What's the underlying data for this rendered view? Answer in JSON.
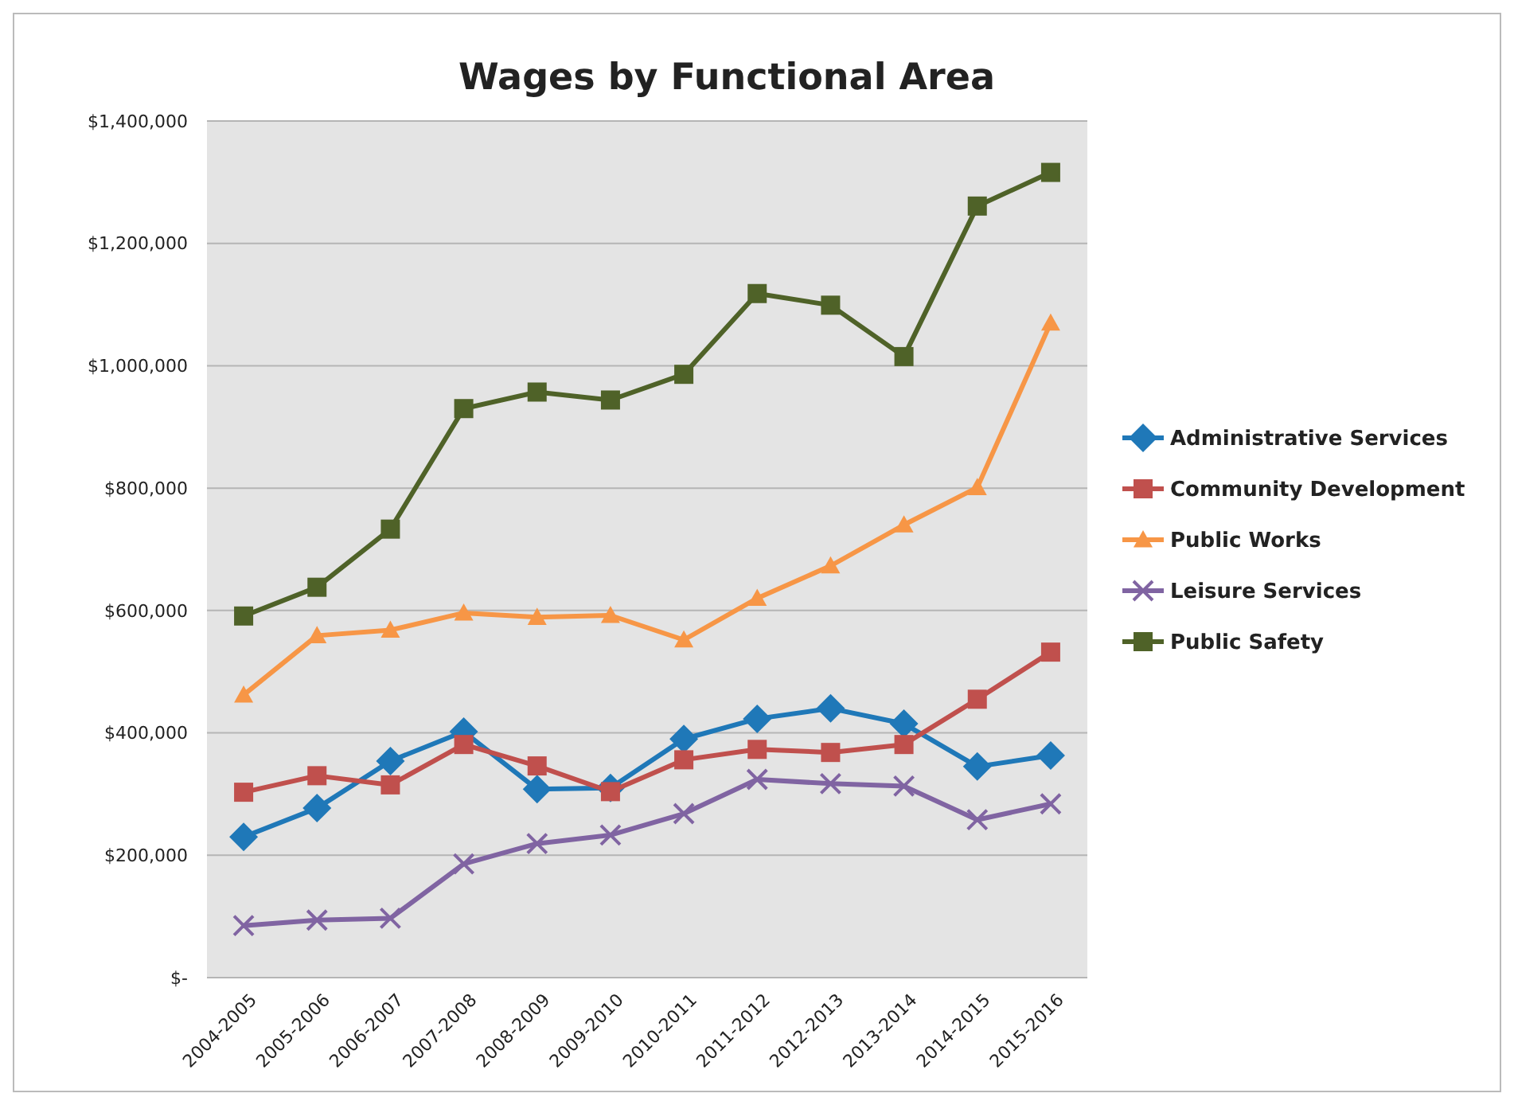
{
  "chart_data": {
    "type": "line",
    "title": "Wages by Functional Area",
    "categories": [
      "2004-2005",
      "2005-2006",
      "2006-2007",
      "2007-2008",
      "2008-2009",
      "2009-2010",
      "2010-2011",
      "2011-2012",
      "2012-2013",
      "2013-2014",
      "2014-2015",
      "2015-2016"
    ],
    "series": [
      {
        "name": "Administrative Services",
        "color": "#1f78b8",
        "marker": "diamond",
        "values": [
          230000,
          277000,
          354000,
          402000,
          308000,
          310000,
          390000,
          423000,
          440000,
          415000,
          345000,
          363000
        ]
      },
      {
        "name": "Community Development",
        "color": "#c0504d",
        "marker": "square",
        "values": [
          303000,
          330000,
          315000,
          381000,
          346000,
          304000,
          356000,
          373000,
          368000,
          381000,
          455000,
          532000
        ]
      },
      {
        "name": "Public Works",
        "color": "#f79646",
        "marker": "triangle",
        "values": [
          462000,
          559000,
          568000,
          596000,
          589000,
          592000,
          552000,
          620000,
          673000,
          740000,
          801000,
          1070000
        ]
      },
      {
        "name": "Leisure Services",
        "color": "#8064a2",
        "marker": "cross",
        "values": [
          85000,
          94000,
          97000,
          186000,
          219000,
          233000,
          268000,
          324000,
          317000,
          313000,
          258000,
          284000
        ]
      },
      {
        "name": "Public Safety",
        "color": "#4f6228",
        "marker": "square",
        "values": [
          591000,
          638000,
          733000,
          930000,
          957000,
          944000,
          986000,
          1118000,
          1099000,
          1015000,
          1261000,
          1316000
        ]
      }
    ],
    "ylim": [
      0,
      1400000
    ],
    "yticks": [
      {
        "value": 0,
        "label": "$-"
      },
      {
        "value": 200000,
        "label": "$200,000"
      },
      {
        "value": 400000,
        "label": "$400,000"
      },
      {
        "value": 600000,
        "label": "$600,000"
      },
      {
        "value": 800000,
        "label": "$800,000"
      },
      {
        "value": 1000000,
        "label": "$1,000,000"
      },
      {
        "value": 1200000,
        "label": "$1,200,000"
      },
      {
        "value": 1400000,
        "label": "$1,400,000"
      }
    ],
    "grid": "y",
    "legend": "right",
    "line_style": "solid"
  }
}
